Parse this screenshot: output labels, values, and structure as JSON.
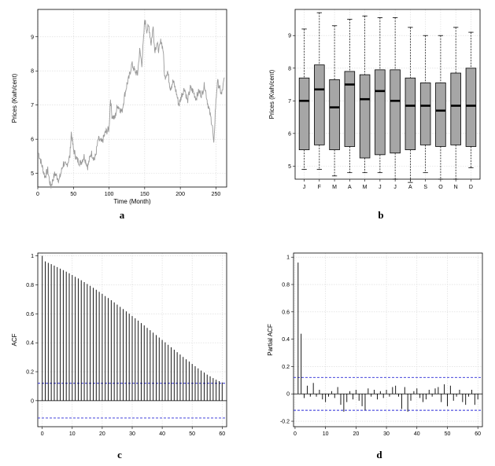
{
  "chart_data": [
    {
      "id": "a",
      "type": "line",
      "panel_label": "a",
      "xlabel": "Time (Month)",
      "ylabel": "Prices (Kwh/cent)",
      "xlim": [
        0,
        265
      ],
      "ylim": [
        4.6,
        9.8
      ],
      "xticks": [
        0,
        50,
        100,
        150,
        200,
        250
      ],
      "yticks": [
        5,
        6,
        7,
        8,
        9
      ],
      "grid": true,
      "anchors": [
        [
          1,
          5.6
        ],
        [
          5,
          5.3
        ],
        [
          10,
          4.9
        ],
        [
          14,
          5.1
        ],
        [
          18,
          4.6
        ],
        [
          24,
          5.0
        ],
        [
          30,
          4.8
        ],
        [
          36,
          5.3
        ],
        [
          40,
          5.2
        ],
        [
          45,
          5.5
        ],
        [
          47,
          6.2
        ],
        [
          50,
          5.7
        ],
        [
          55,
          5.4
        ],
        [
          60,
          5.3
        ],
        [
          65,
          5.5
        ],
        [
          70,
          5.2
        ],
        [
          75,
          5.6
        ],
        [
          80,
          5.4
        ],
        [
          85,
          6.0
        ],
        [
          90,
          5.9
        ],
        [
          95,
          6.2
        ],
        [
          100,
          6.3
        ],
        [
          102,
          7.2
        ],
        [
          104,
          6.7
        ],
        [
          108,
          6.6
        ],
        [
          112,
          7.0
        ],
        [
          115,
          6.9
        ],
        [
          118,
          6.8
        ],
        [
          122,
          7.3
        ],
        [
          125,
          7.6
        ],
        [
          128,
          7.8
        ],
        [
          132,
          8.2
        ],
        [
          136,
          8.0
        ],
        [
          140,
          7.9
        ],
        [
          143,
          8.6
        ],
        [
          146,
          8.2
        ],
        [
          149,
          9.1
        ],
        [
          150,
          9.5
        ],
        [
          153,
          9.2
        ],
        [
          156,
          9.3
        ],
        [
          159,
          8.8
        ],
        [
          162,
          9.3
        ],
        [
          164,
          8.6
        ],
        [
          167,
          8.8
        ],
        [
          170,
          8.6
        ],
        [
          173,
          8.9
        ],
        [
          176,
          8.6
        ],
        [
          178,
          7.8
        ],
        [
          182,
          8.0
        ],
        [
          186,
          7.5
        ],
        [
          190,
          7.7
        ],
        [
          194,
          7.4
        ],
        [
          198,
          7.0
        ],
        [
          202,
          7.3
        ],
        [
          206,
          7.5
        ],
        [
          210,
          7.1
        ],
        [
          214,
          7.5
        ],
        [
          218,
          7.4
        ],
        [
          222,
          7.2
        ],
        [
          226,
          7.4
        ],
        [
          230,
          7.3
        ],
        [
          234,
          7.6
        ],
        [
          238,
          7.1
        ],
        [
          242,
          6.7
        ],
        [
          245,
          6.4
        ],
        [
          247,
          5.8
        ],
        [
          249,
          6.8
        ],
        [
          252,
          7.7
        ],
        [
          255,
          7.5
        ],
        [
          258,
          7.3
        ],
        [
          262,
          7.8
        ]
      ]
    },
    {
      "id": "b",
      "type": "box",
      "panel_label": "b",
      "ylabel": "Prices (Kwh/cent)",
      "ylim": [
        4.6,
        9.8
      ],
      "yticks": [
        5,
        6,
        7,
        8,
        9
      ],
      "categories": [
        "J",
        "F",
        "M",
        "A",
        "M",
        "J",
        "J",
        "A",
        "S",
        "O",
        "N",
        "D"
      ],
      "boxes": [
        {
          "min": 4.9,
          "q1": 5.5,
          "median": 7.0,
          "q3": 7.7,
          "max": 9.2
        },
        {
          "min": 4.9,
          "q1": 5.65,
          "median": 7.35,
          "q3": 8.1,
          "max": 9.7
        },
        {
          "min": 4.7,
          "q1": 5.5,
          "median": 6.8,
          "q3": 7.65,
          "max": 9.3
        },
        {
          "min": 4.8,
          "q1": 5.6,
          "median": 7.5,
          "q3": 7.9,
          "max": 9.5
        },
        {
          "min": 4.8,
          "q1": 5.25,
          "median": 7.05,
          "q3": 7.8,
          "max": 9.6
        },
        {
          "min": 4.8,
          "q1": 5.35,
          "median": 7.3,
          "q3": 7.95,
          "max": 9.55
        },
        {
          "min": 4.6,
          "q1": 5.4,
          "median": 7.0,
          "q3": 7.95,
          "max": 9.55
        },
        {
          "min": 4.5,
          "q1": 5.5,
          "median": 6.85,
          "q3": 7.7,
          "max": 9.25
        },
        {
          "min": 4.8,
          "q1": 5.65,
          "median": 6.85,
          "q3": 7.55,
          "max": 9.0
        },
        {
          "min": 4.6,
          "q1": 5.6,
          "median": 6.7,
          "q3": 7.55,
          "max": 9.0
        },
        {
          "min": 4.6,
          "q1": 5.65,
          "median": 6.85,
          "q3": 7.85,
          "max": 9.25
        },
        {
          "min": 4.95,
          "q1": 5.6,
          "median": 6.85,
          "q3": 8.0,
          "max": 9.1
        }
      ]
    },
    {
      "id": "c",
      "type": "acf",
      "panel_label": "c",
      "ylabel": "ACF",
      "xlim": [
        -1.5,
        61.5
      ],
      "ylim": [
        -0.18,
        1.02
      ],
      "xticks": [
        0,
        10,
        20,
        30,
        40,
        50,
        60
      ],
      "yticks": [
        0.0,
        0.2,
        0.4,
        0.6,
        0.8,
        1.0
      ],
      "ci": 0.12,
      "lags": [
        0,
        1,
        2,
        3,
        4,
        5,
        6,
        7,
        8,
        9,
        10,
        11,
        12,
        13,
        14,
        15,
        16,
        17,
        18,
        19,
        20,
        21,
        22,
        23,
        24,
        25,
        26,
        27,
        28,
        29,
        30,
        31,
        32,
        33,
        34,
        35,
        36,
        37,
        38,
        39,
        40,
        41,
        42,
        43,
        44,
        45,
        46,
        47,
        48,
        49,
        50,
        51,
        52,
        53,
        54,
        55,
        56,
        57,
        58,
        59,
        60
      ],
      "values": [
        1.0,
        0.962,
        0.952,
        0.943,
        0.933,
        0.923,
        0.912,
        0.902,
        0.891,
        0.88,
        0.868,
        0.856,
        0.844,
        0.832,
        0.819,
        0.806,
        0.793,
        0.78,
        0.766,
        0.752,
        0.738,
        0.723,
        0.709,
        0.694,
        0.679,
        0.664,
        0.648,
        0.633,
        0.617,
        0.601,
        0.585,
        0.569,
        0.553,
        0.536,
        0.52,
        0.503,
        0.487,
        0.47,
        0.453,
        0.436,
        0.42,
        0.403,
        0.386,
        0.369,
        0.352,
        0.335,
        0.319,
        0.302,
        0.286,
        0.27,
        0.254,
        0.238,
        0.223,
        0.208,
        0.194,
        0.18,
        0.168,
        0.156,
        0.145,
        0.135,
        0.126
      ]
    },
    {
      "id": "d",
      "type": "pacf",
      "panel_label": "d",
      "ylabel": "Partial ACF",
      "xlim": [
        -0.5,
        61.5
      ],
      "ylim": [
        -0.24,
        1.03
      ],
      "xticks": [
        0,
        10,
        20,
        30,
        40,
        50,
        60
      ],
      "yticks": [
        -0.2,
        0.0,
        0.2,
        0.4,
        0.6,
        0.8,
        1.0
      ],
      "ci": 0.12,
      "lags": [
        1,
        2,
        3,
        4,
        5,
        6,
        7,
        8,
        9,
        10,
        11,
        12,
        13,
        14,
        15,
        16,
        17,
        18,
        19,
        20,
        21,
        22,
        23,
        24,
        25,
        26,
        27,
        28,
        29,
        30,
        31,
        32,
        33,
        34,
        35,
        36,
        37,
        38,
        39,
        40,
        41,
        42,
        43,
        44,
        45,
        46,
        47,
        48,
        49,
        50,
        51,
        52,
        53,
        54,
        55,
        56,
        57,
        58,
        59,
        60
      ],
      "values": [
        0.96,
        0.44,
        -0.03,
        0.06,
        -0.02,
        0.08,
        -0.02,
        0.03,
        -0.04,
        -0.06,
        -0.02,
        0.02,
        -0.03,
        0.05,
        -0.08,
        -0.13,
        -0.06,
        0.02,
        -0.04,
        0.03,
        -0.05,
        -0.09,
        -0.12,
        0.04,
        -0.02,
        0.03,
        -0.04,
        0.02,
        -0.03,
        0.03,
        -0.02,
        0.05,
        0.06,
        -0.02,
        -0.11,
        0.05,
        -0.13,
        -0.05,
        0.02,
        0.04,
        -0.03,
        -0.06,
        -0.04,
        0.03,
        -0.02,
        0.04,
        0.05,
        -0.06,
        0.07,
        -0.09,
        0.06,
        -0.05,
        -0.02,
        0.03,
        -0.06,
        -0.08,
        -0.02,
        0.03,
        -0.08,
        -0.04
      ]
    }
  ]
}
